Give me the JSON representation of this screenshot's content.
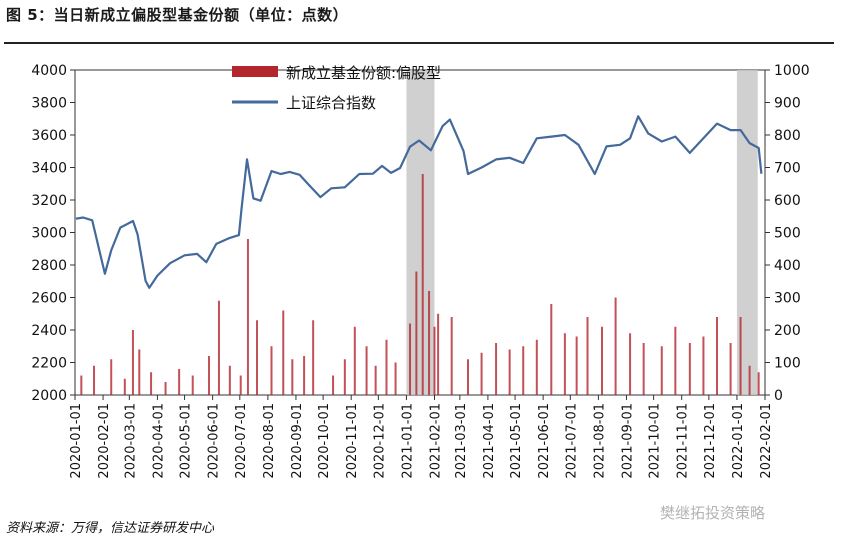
{
  "header": {
    "title": "图 5：当日新成立偏股型基金份额（单位：点数）"
  },
  "footer": {
    "source": "资料来源：万得，信达证券研发中心"
  },
  "watermark": {
    "text": "樊继拓投资策略"
  },
  "colors": {
    "line": "#44699b",
    "bar": "#b3262e",
    "shade": "#c8c8c8"
  },
  "chart_data": {
    "type": "bar+line",
    "legend": [
      {
        "name": "新成立基金份额:偏股型",
        "kind": "bar",
        "axis": "right"
      },
      {
        "name": "上证综合指数",
        "kind": "line",
        "axis": "left"
      }
    ],
    "legend_position": "top-center",
    "grid": false,
    "x_ticks": [
      "2020-01-01",
      "2020-02-01",
      "2020-03-01",
      "2020-04-01",
      "2020-05-01",
      "2020-06-01",
      "2020-07-01",
      "2020-08-01",
      "2020-09-01",
      "2020-10-01",
      "2020-11-01",
      "2020-12-01",
      "2021-01-01",
      "2021-02-01",
      "2021-03-01",
      "2021-04-01",
      "2021-05-01",
      "2021-06-01",
      "2021-07-01",
      "2021-08-01",
      "2021-09-01",
      "2021-10-01",
      "2021-11-01",
      "2021-12-01",
      "2022-01-01",
      "2022-02-01"
    ],
    "y_left": {
      "min": 2000,
      "max": 4000,
      "ticks": [
        2000,
        2200,
        2400,
        2600,
        2800,
        3000,
        3200,
        3400,
        3600,
        3800,
        4000
      ]
    },
    "y_right": {
      "min": 0,
      "max": 1000,
      "ticks": [
        0,
        100,
        200,
        300,
        400,
        500,
        600,
        700,
        800,
        900,
        1000
      ]
    },
    "shaded_ranges": [
      [
        "2021-01-01",
        "2021-02-01"
      ],
      [
        "2022-01-01",
        "2022-01-24"
      ]
    ],
    "line_series": {
      "name": "上证综合指数",
      "points": [
        [
          "2020-01-02",
          3085
        ],
        [
          "2020-01-10",
          3092
        ],
        [
          "2020-01-20",
          3075
        ],
        [
          "2020-02-03",
          2746
        ],
        [
          "2020-02-10",
          2890
        ],
        [
          "2020-02-20",
          3030
        ],
        [
          "2020-03-05",
          3071
        ],
        [
          "2020-03-10",
          2990
        ],
        [
          "2020-03-19",
          2702
        ],
        [
          "2020-03-23",
          2660
        ],
        [
          "2020-04-01",
          2735
        ],
        [
          "2020-04-15",
          2811
        ],
        [
          "2020-05-01",
          2860
        ],
        [
          "2020-05-15",
          2868
        ],
        [
          "2020-05-25",
          2817
        ],
        [
          "2020-06-05",
          2930
        ],
        [
          "2020-06-20",
          2967
        ],
        [
          "2020-06-30",
          2984
        ],
        [
          "2020-07-03",
          3150
        ],
        [
          "2020-07-09",
          3450
        ],
        [
          "2020-07-16",
          3210
        ],
        [
          "2020-07-24",
          3196
        ],
        [
          "2020-08-05",
          3378
        ],
        [
          "2020-08-15",
          3360
        ],
        [
          "2020-08-25",
          3373
        ],
        [
          "2020-09-05",
          3355
        ],
        [
          "2020-09-15",
          3295
        ],
        [
          "2020-09-28",
          3218
        ],
        [
          "2020-10-10",
          3272
        ],
        [
          "2020-10-25",
          3278
        ],
        [
          "2020-11-10",
          3360
        ],
        [
          "2020-11-25",
          3362
        ],
        [
          "2020-12-05",
          3410
        ],
        [
          "2020-12-15",
          3367
        ],
        [
          "2020-12-25",
          3397
        ],
        [
          "2021-01-05",
          3528
        ],
        [
          "2021-01-15",
          3566
        ],
        [
          "2021-01-28",
          3506
        ],
        [
          "2021-02-10",
          3655
        ],
        [
          "2021-02-18",
          3695
        ],
        [
          "2021-03-05",
          3502
        ],
        [
          "2021-03-10",
          3360
        ],
        [
          "2021-03-25",
          3400
        ],
        [
          "2021-04-10",
          3450
        ],
        [
          "2021-04-25",
          3460
        ],
        [
          "2021-05-10",
          3428
        ],
        [
          "2021-05-25",
          3580
        ],
        [
          "2021-06-10",
          3590
        ],
        [
          "2021-06-25",
          3600
        ],
        [
          "2021-07-10",
          3540
        ],
        [
          "2021-07-28",
          3360
        ],
        [
          "2021-08-10",
          3530
        ],
        [
          "2021-08-25",
          3540
        ],
        [
          "2021-09-05",
          3580
        ],
        [
          "2021-09-14",
          3715
        ],
        [
          "2021-09-25",
          3610
        ],
        [
          "2021-10-10",
          3560
        ],
        [
          "2021-10-25",
          3590
        ],
        [
          "2021-11-10",
          3490
        ],
        [
          "2021-11-25",
          3580
        ],
        [
          "2021-12-10",
          3670
        ],
        [
          "2021-12-25",
          3630
        ],
        [
          "2022-01-05",
          3630
        ],
        [
          "2022-01-15",
          3550
        ],
        [
          "2022-01-25",
          3520
        ],
        [
          "2022-01-28",
          3361
        ]
      ]
    },
    "bar_series": {
      "name": "新成立基金份额:偏股型",
      "points": [
        [
          "2020-01-08",
          60
        ],
        [
          "2020-01-22",
          90
        ],
        [
          "2020-02-10",
          110
        ],
        [
          "2020-02-25",
          50
        ],
        [
          "2020-03-05",
          200
        ],
        [
          "2020-03-12",
          140
        ],
        [
          "2020-03-25",
          70
        ],
        [
          "2020-04-10",
          40
        ],
        [
          "2020-04-25",
          80
        ],
        [
          "2020-05-10",
          60
        ],
        [
          "2020-05-28",
          120
        ],
        [
          "2020-06-08",
          290
        ],
        [
          "2020-06-20",
          90
        ],
        [
          "2020-07-02",
          60
        ],
        [
          "2020-07-10",
          480
        ],
        [
          "2020-07-20",
          230
        ],
        [
          "2020-08-05",
          150
        ],
        [
          "2020-08-18",
          260
        ],
        [
          "2020-08-28",
          110
        ],
        [
          "2020-09-10",
          120
        ],
        [
          "2020-09-20",
          230
        ],
        [
          "2020-10-12",
          60
        ],
        [
          "2020-10-25",
          110
        ],
        [
          "2020-11-05",
          210
        ],
        [
          "2020-11-18",
          150
        ],
        [
          "2020-11-28",
          90
        ],
        [
          "2020-12-10",
          170
        ],
        [
          "2020-12-20",
          100
        ],
        [
          "2021-01-05",
          220
        ],
        [
          "2021-01-12",
          380
        ],
        [
          "2021-01-19",
          680
        ],
        [
          "2021-01-26",
          320
        ],
        [
          "2021-02-01",
          210
        ],
        [
          "2021-02-05",
          250
        ],
        [
          "2021-02-20",
          240
        ],
        [
          "2021-03-10",
          110
        ],
        [
          "2021-03-25",
          130
        ],
        [
          "2021-04-10",
          160
        ],
        [
          "2021-04-25",
          140
        ],
        [
          "2021-05-10",
          150
        ],
        [
          "2021-05-25",
          170
        ],
        [
          "2021-06-10",
          280
        ],
        [
          "2021-06-25",
          190
        ],
        [
          "2021-07-08",
          180
        ],
        [
          "2021-07-20",
          240
        ],
        [
          "2021-08-05",
          210
        ],
        [
          "2021-08-20",
          300
        ],
        [
          "2021-09-05",
          190
        ],
        [
          "2021-09-20",
          160
        ],
        [
          "2021-10-10",
          150
        ],
        [
          "2021-10-25",
          210
        ],
        [
          "2021-11-10",
          160
        ],
        [
          "2021-11-25",
          180
        ],
        [
          "2021-12-10",
          240
        ],
        [
          "2021-12-25",
          160
        ],
        [
          "2022-01-05",
          240
        ],
        [
          "2022-01-15",
          90
        ],
        [
          "2022-01-25",
          70
        ]
      ]
    }
  }
}
